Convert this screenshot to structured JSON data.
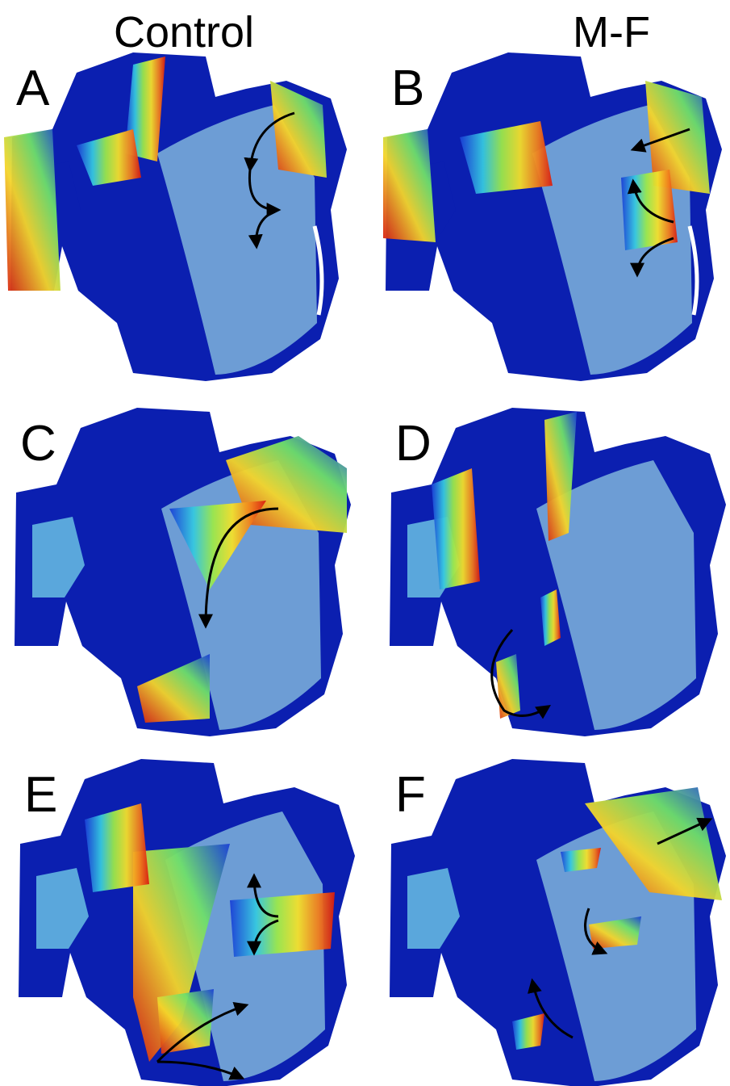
{
  "columns": [
    "Control",
    "M-F"
  ],
  "panels": [
    {
      "label": "A"
    },
    {
      "label": "B"
    },
    {
      "label": "C"
    },
    {
      "label": "D"
    },
    {
      "label": "E"
    },
    {
      "label": "F"
    }
  ]
}
